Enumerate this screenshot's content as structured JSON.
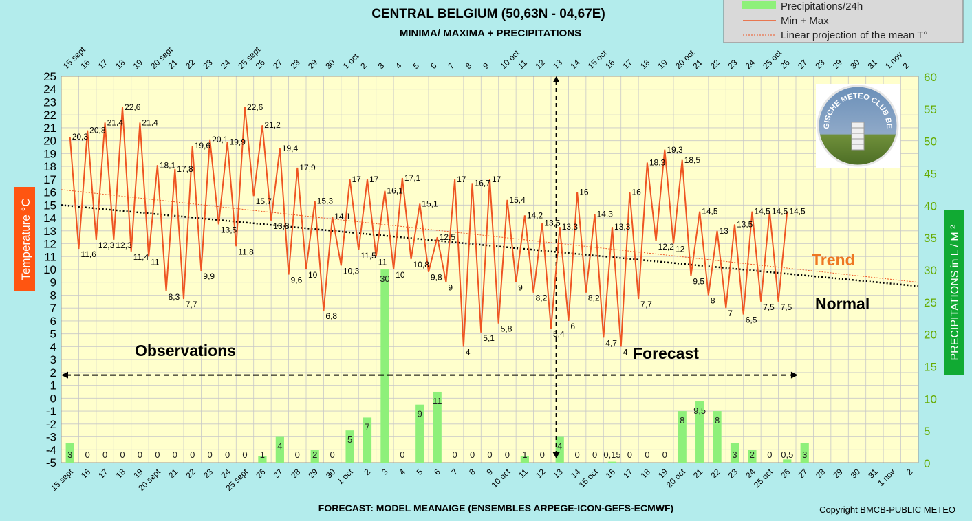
{
  "header": {
    "title": "CENTRAL BELGIUM (50,63N - 04,67E)",
    "subtitle": "MINIMA/ MAXIMA + PRECIPITATIONS"
  },
  "footer": {
    "model": "FORECAST: MODEL MEANAIGE (ENSEMBLES ARPEGE-ICON-GEFS-ECMWF)",
    "copyright": "Copyright BMCB-PUBLIC METEO"
  },
  "annotations": {
    "observations": "Observations",
    "forecast": "Forecast",
    "trend": "Trend",
    "normal": "Normal"
  },
  "logo": {
    "text": "BELGISCHE METEO CLUB BELGE"
  },
  "colors": {
    "background": "#b3ecec",
    "plot_bg": "#ffffcc",
    "grid": "#c8c8c8",
    "temperature_line": "#ee5522",
    "precip_bar": "#8ef07a",
    "trend_text": "#ee7722",
    "axis_green": "#66aa00",
    "temp_badge": "#ff5511",
    "precip_badge": "#11aa33"
  },
  "chart_data": {
    "type": "line",
    "title": "CENTRAL BELGIUM (50,63N - 04,67E)",
    "subtitle": "MINIMA/ MAXIMA + PRECIPITATIONS",
    "date_labels": [
      "15 sept",
      "16",
      "17",
      "18",
      "19",
      "20 sept",
      "21",
      "22",
      "23",
      "24",
      "25 sept",
      "26",
      "27",
      "28",
      "29",
      "30",
      "1 oct",
      "2",
      "3",
      "4",
      "5",
      "6",
      "7",
      "8",
      "9",
      "10 oct",
      "11",
      "12",
      "13",
      "14",
      "15 oct",
      "16",
      "17",
      "18",
      "19",
      "20 oct",
      "21",
      "22",
      "23",
      "24",
      "25 oct",
      "26",
      "27",
      "28",
      "29",
      "30",
      "31",
      "1 nov",
      "2"
    ],
    "y_left": {
      "label": "Temperature  °C",
      "min": -5,
      "max": 25,
      "step": 1
    },
    "y_right": {
      "label": "PRECIPITATIONS in L / M ²",
      "min": 0,
      "max": 60,
      "step": 5
    },
    "series": [
      {
        "name": "Min + Max",
        "values": [
          20.3,
          11.6,
          20.8,
          12.3,
          21.4,
          12.3,
          22.6,
          11.4,
          21.4,
          11,
          18.1,
          8.3,
          17.8,
          7.7,
          19.6,
          9.9,
          20.1,
          13.5,
          19.9,
          11.8,
          22.6,
          15.7,
          21.2,
          13.8,
          19.4,
          9.6,
          17.9,
          10,
          15.3,
          6.8,
          14.1,
          10.3,
          17,
          11.5,
          17,
          11,
          16.1,
          10,
          17.1,
          10.8,
          15.1,
          9.8,
          12.5,
          9,
          17,
          4,
          16.7,
          5.1,
          17,
          5.8,
          15.4,
          9,
          14.2,
          8.2,
          13.6,
          5.4,
          13.3,
          6,
          16,
          8.2,
          14.3,
          4.7,
          13.3,
          4,
          16,
          7.7,
          18.3,
          12.2,
          19.3,
          12,
          18.5,
          9.5,
          14.5,
          8,
          13,
          7,
          13.5,
          6.5,
          14.5,
          7.5,
          14.5,
          7.5,
          14.5
        ]
      },
      {
        "name": "Precipitations/24h",
        "labels": [
          "3",
          "0",
          "0",
          "0",
          "0",
          "0",
          "0",
          "0",
          "0",
          "0",
          "0",
          "1",
          "4",
          "0",
          "2",
          "0",
          "5",
          "7",
          "30",
          "0",
          "9",
          "11",
          "0",
          "0",
          "0",
          "0",
          "1",
          "0",
          "4",
          "0",
          "0",
          "0,15",
          "0",
          "0",
          "0",
          "8",
          "9,5",
          "8",
          "3",
          "2",
          "0",
          "0,5",
          "3"
        ],
        "values": [
          3,
          0,
          0,
          0,
          0,
          0,
          0,
          0,
          0,
          0,
          0,
          1,
          4,
          0,
          2,
          0,
          5,
          7,
          30,
          0,
          9,
          11,
          0,
          0,
          0,
          0,
          1,
          0,
          4,
          0,
          0,
          0.15,
          0,
          0,
          0,
          8,
          9.5,
          8,
          3,
          2,
          0,
          0.5,
          3
        ]
      },
      {
        "name": "Linear projection of the mean T°",
        "values": [
          16.2,
          9.0
        ]
      },
      {
        "name": "Normal",
        "values": [
          15.0,
          8.7
        ]
      }
    ],
    "legend": [
      "Precipitations/24h",
      "Min + Max",
      "Linear projection of the mean T°"
    ],
    "legend_position": "top-right",
    "grid": true
  }
}
